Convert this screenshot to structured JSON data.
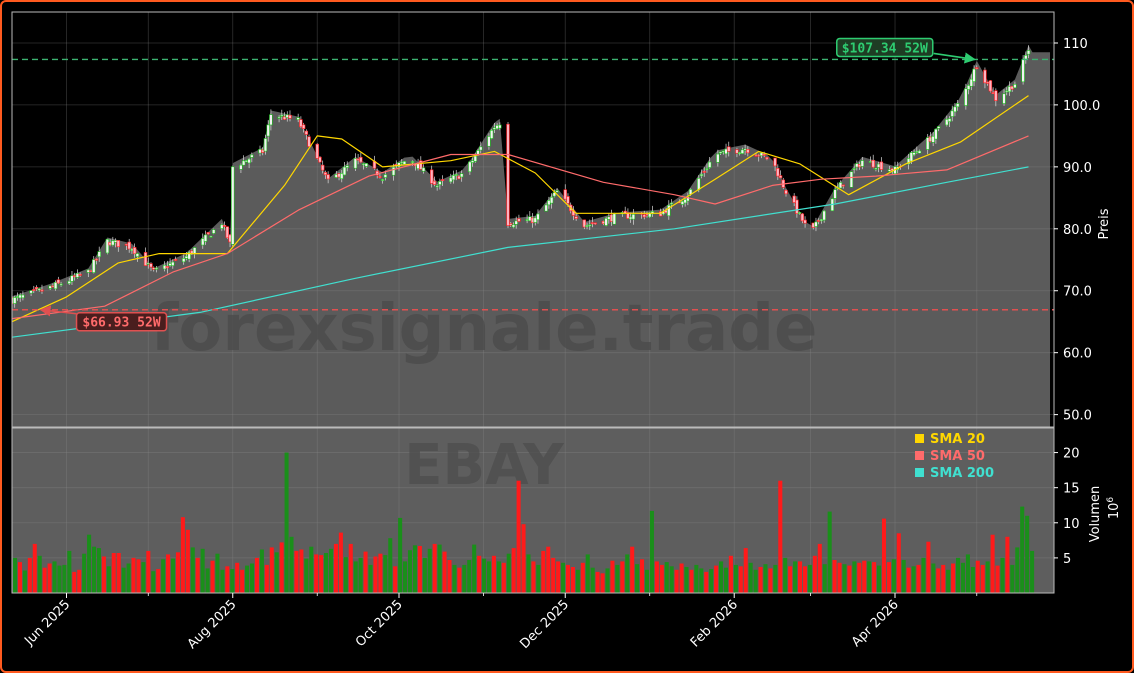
{
  "chart_data": [
    {
      "type": "candlestick",
      "ylabel": "Preis",
      "ylim": [
        48,
        115
      ],
      "yticks": [
        "50.0",
        "60.0",
        "70.0",
        "80.0",
        "90.0",
        "100.0",
        "110"
      ],
      "xticks": [
        "Jun 2025",
        "Aug 2025",
        "Oct 2025",
        "Dec 2025",
        "Feb 2026",
        "Apr 2026"
      ],
      "x_dates": [
        "2025-05-12",
        "2026-05-22"
      ],
      "watermark": "forexsignale.trade",
      "grid": true,
      "colors": {
        "up": "#19c219",
        "down": "#ff1a1a",
        "sma20": "#ffd700",
        "sma50": "#ff6b6b",
        "sma200": "#40e0d0",
        "high_line": "#3cb371",
        "low_line": "#e05050"
      },
      "high_52w": {
        "label": "$107.34 52W",
        "value": 107.34,
        "date": "2026-05-01"
      },
      "low_52w": {
        "label": "$66.93 52W",
        "value": 66.93,
        "date": "2025-05-21"
      },
      "price_path": [
        {
          "date": "2025-05-12",
          "close": 68.5
        },
        {
          "date": "2025-05-26",
          "close": 70.5
        },
        {
          "date": "2025-06-09",
          "close": 73.0
        },
        {
          "date": "2025-06-16",
          "close": 78.0
        },
        {
          "date": "2025-06-25",
          "close": 77.0
        },
        {
          "date": "2025-07-03",
          "close": 73.0
        },
        {
          "date": "2025-07-15",
          "close": 75.5
        },
        {
          "date": "2025-07-28",
          "close": 81.0
        },
        {
          "date": "2025-07-31",
          "close": 77.5
        },
        {
          "date": "2025-08-01",
          "close": 90.0
        },
        {
          "date": "2025-08-12",
          "close": 92.5
        },
        {
          "date": "2025-08-15",
          "close": 98.5
        },
        {
          "date": "2025-08-25",
          "close": 97.5
        },
        {
          "date": "2025-09-05",
          "close": 87.5
        },
        {
          "date": "2025-09-15",
          "close": 91.0
        },
        {
          "date": "2025-09-25",
          "close": 88.5
        },
        {
          "date": "2025-10-05",
          "close": 91.5
        },
        {
          "date": "2025-10-15",
          "close": 87.0
        },
        {
          "date": "2025-10-25",
          "close": 89.0
        },
        {
          "date": "2025-11-05",
          "close": 96.5
        },
        {
          "date": "2025-11-08",
          "close": 97.5
        },
        {
          "date": "2025-11-10",
          "close": 81.0
        },
        {
          "date": "2025-11-20",
          "close": 81.5
        },
        {
          "date": "2025-11-28",
          "close": 86.0
        },
        {
          "date": "2025-12-08",
          "close": 80.5
        },
        {
          "date": "2025-12-20",
          "close": 82.0
        },
        {
          "date": "2026-01-05",
          "close": 82.5
        },
        {
          "date": "2026-01-15",
          "close": 85.5
        },
        {
          "date": "2026-01-25",
          "close": 92.0
        },
        {
          "date": "2026-02-05",
          "close": 93.0
        },
        {
          "date": "2026-02-15",
          "close": 91.0
        },
        {
          "date": "2026-02-20",
          "close": 86.0
        },
        {
          "date": "2026-03-01",
          "close": 79.0
        },
        {
          "date": "2026-03-10",
          "close": 86.0
        },
        {
          "date": "2026-03-20",
          "close": 91.0
        },
        {
          "date": "2026-04-01",
          "close": 89.5
        },
        {
          "date": "2026-04-15",
          "close": 95.0
        },
        {
          "date": "2026-04-25",
          "close": 100.5
        },
        {
          "date": "2026-05-01",
          "close": 106.5
        },
        {
          "date": "2026-05-08",
          "close": 101.0
        },
        {
          "date": "2026-05-15",
          "close": 103.5
        },
        {
          "date": "2026-05-20",
          "close": 109.0
        }
      ],
      "series": [
        {
          "name": "SMA 20",
          "points": [
            {
              "date": "2025-05-12",
              "value": 65.0
            },
            {
              "date": "2025-06-01",
              "value": 69.0
            },
            {
              "date": "2025-06-20",
              "value": 74.5
            },
            {
              "date": "2025-07-05",
              "value": 76.0
            },
            {
              "date": "2025-07-30",
              "value": 76.0
            },
            {
              "date": "2025-08-20",
              "value": 87.0
            },
            {
              "date": "2025-09-01",
              "value": 95.0
            },
            {
              "date": "2025-09-10",
              "value": 94.5
            },
            {
              "date": "2025-09-25",
              "value": 90.0
            },
            {
              "date": "2025-10-20",
              "value": 91.0
            },
            {
              "date": "2025-11-05",
              "value": 92.5
            },
            {
              "date": "2025-11-20",
              "value": 89.0
            },
            {
              "date": "2025-12-05",
              "value": 82.5
            },
            {
              "date": "2026-01-05",
              "value": 82.5
            },
            {
              "date": "2026-01-25",
              "value": 88.0
            },
            {
              "date": "2026-02-10",
              "value": 92.5
            },
            {
              "date": "2026-02-25",
              "value": 90.5
            },
            {
              "date": "2026-03-15",
              "value": 85.5
            },
            {
              "date": "2026-04-05",
              "value": 90.5
            },
            {
              "date": "2026-04-25",
              "value": 94.0
            },
            {
              "date": "2026-05-20",
              "value": 101.5
            }
          ]
        },
        {
          "name": "SMA 50",
          "points": [
            {
              "date": "2025-05-12",
              "value": 65.5
            },
            {
              "date": "2025-06-15",
              "value": 67.5
            },
            {
              "date": "2025-07-10",
              "value": 73.0
            },
            {
              "date": "2025-07-30",
              "value": 76.0
            },
            {
              "date": "2025-08-25",
              "value": 83.0
            },
            {
              "date": "2025-09-20",
              "value": 88.5
            },
            {
              "date": "2025-10-20",
              "value": 92.0
            },
            {
              "date": "2025-11-10",
              "value": 92.0
            },
            {
              "date": "2025-12-15",
              "value": 87.5
            },
            {
              "date": "2026-01-10",
              "value": 85.5
            },
            {
              "date": "2026-01-25",
              "value": 84.0
            },
            {
              "date": "2026-02-15",
              "value": 87.0
            },
            {
              "date": "2026-03-05",
              "value": 88.0
            },
            {
              "date": "2026-03-25",
              "value": 88.5
            },
            {
              "date": "2026-04-20",
              "value": 89.5
            },
            {
              "date": "2026-05-20",
              "value": 95.0
            }
          ]
        },
        {
          "name": "SMA 200",
          "points": [
            {
              "date": "2025-05-12",
              "value": 62.5
            },
            {
              "date": "2025-07-20",
              "value": 66.5
            },
            {
              "date": "2025-09-15",
              "value": 72.0
            },
            {
              "date": "2025-11-10",
              "value": 77.0
            },
            {
              "date": "2026-01-10",
              "value": 80.0
            },
            {
              "date": "2026-03-10",
              "value": 84.0
            },
            {
              "date": "2026-04-20",
              "value": 87.5
            },
            {
              "date": "2026-05-20",
              "value": 90.0
            }
          ]
        }
      ]
    },
    {
      "type": "bar",
      "ylabel": "Volumen",
      "ylabel_unit": "10",
      "ylabel_unit_exp": "6",
      "ylim": [
        0,
        23.5
      ],
      "yticks": [
        "5",
        "10",
        "15",
        "20"
      ],
      "watermark": "EBAY",
      "legend": {
        "position": "upper-right",
        "entries": [
          "SMA 20",
          "SMA 50",
          "SMA 200"
        ]
      },
      "volumes_millions": [
        5.0,
        4.4,
        3.2,
        5.0,
        7.0,
        5.3,
        3.6,
        4.2,
        4.5,
        3.9,
        4.0,
        6.0,
        3.0,
        3.3,
        5.6,
        8.3,
        6.6,
        6.4,
        5.2,
        3.8,
        5.7,
        5.7,
        3.6,
        4.2,
        5.0,
        4.8,
        4.4,
        6.0,
        3.1,
        3.4,
        4.8,
        5.5,
        4.9,
        5.8,
        10.8,
        9.0,
        6.5,
        5.0,
        6.3,
        3.5,
        4.6,
        5.6,
        3.3,
        3.8,
        3.4,
        4.3,
        3.3,
        3.9,
        4.2,
        5.0,
        6.2,
        4.0,
        6.5,
        5.8,
        7.2,
        20.0,
        8.0,
        6.0,
        6.2,
        4.9,
        6.6,
        5.5,
        5.4,
        5.7,
        6.3,
        7.0,
        8.6,
        5.1,
        7.0,
        4.5,
        5.0,
        5.9,
        4.0,
        5.2,
        5.6,
        5.4,
        7.8,
        3.8,
        10.7,
        4.5,
        6.1,
        6.8,
        6.7,
        5.0,
        6.3,
        7.0,
        6.9,
        5.9,
        4.7,
        4.0,
        3.6,
        4.0,
        4.7,
        6.9,
        5.3,
        4.9,
        4.5,
        5.3,
        4.5,
        4.3,
        5.6,
        6.4,
        16.0,
        9.8,
        5.5,
        4.5,
        4.0,
        6.0,
        6.6,
        5.0,
        4.5,
        4.3,
        4.0,
        3.7,
        3.3,
        4.3,
        5.5,
        3.6,
        3.0,
        2.8,
        3.5,
        4.6,
        4.0,
        4.5,
        5.5,
        6.6,
        4.1,
        4.8,
        3.3,
        11.7,
        4.5,
        4.0,
        4.4,
        3.8,
        3.3,
        4.2,
        3.7,
        3.3,
        4.0,
        3.5,
        3.0,
        3.4,
        3.9,
        4.5,
        3.6,
        5.3,
        4.0,
        3.8,
        6.4,
        4.3,
        3.3,
        3.7,
        4.1,
        3.5,
        4.0,
        16.0,
        5.0,
        3.8,
        4.5,
        4.5,
        3.8,
        4.0,
        5.3,
        7.0,
        4.1,
        11.6,
        4.7,
        4.3,
        4.1,
        3.9,
        4.5,
        4.3,
        4.6,
        4.5,
        4.4,
        3.9,
        10.6,
        4.4,
        4.8,
        8.5,
        4.7,
        3.6,
        3.8,
        4.0,
        5.0,
        7.3,
        4.2,
        3.5,
        4.0,
        3.3,
        4.2,
        5.0,
        4.3,
        5.5,
        3.7,
        4.6,
        4.0,
        4.5,
        8.3,
        3.9,
        5.0,
        8.0,
        4.0,
        6.5,
        12.3,
        11.0,
        6.0
      ],
      "up_flags": [
        1,
        0,
        1,
        0,
        0,
        1,
        0,
        0,
        1,
        1,
        1,
        1,
        0,
        0,
        1,
        1,
        1,
        1,
        0,
        1,
        0,
        0,
        1,
        1,
        0,
        0,
        1,
        0,
        1,
        0,
        1,
        0,
        1,
        0,
        0,
        0,
        1,
        0,
        1,
        1,
        0,
        1,
        1,
        0,
        1,
        0,
        0,
        1,
        1,
        0,
        1,
        0,
        0,
        1,
        0,
        1,
        1,
        0,
        0,
        1,
        1,
        0,
        0,
        1,
        1,
        0,
        0,
        1,
        0,
        1,
        1,
        0,
        1,
        0,
        0,
        1,
        1,
        0,
        1,
        1,
        1,
        1,
        0,
        1,
        1,
        0,
        1,
        0,
        0,
        1,
        0,
        1,
        1,
        1,
        0,
        1,
        1,
        0,
        1,
        0,
        1,
        0,
        0,
        0,
        1,
        0,
        1,
        0,
        0,
        0,
        0,
        1,
        0,
        0,
        1,
        0,
        1,
        1,
        0,
        0,
        1,
        0,
        1,
        0,
        1,
        0,
        1,
        0,
        1,
        1,
        0,
        0,
        1,
        1,
        0,
        0,
        1,
        0,
        1,
        1,
        0,
        1,
        0,
        1,
        1,
        0,
        1,
        0,
        0,
        1,
        1,
        0,
        1,
        0,
        1,
        0,
        1,
        0,
        1,
        0,
        0,
        1,
        0,
        0,
        1,
        1,
        0,
        0,
        1,
        0,
        1,
        0,
        0,
        1,
        0,
        1,
        0,
        0,
        1,
        0,
        1,
        0,
        1,
        0,
        1,
        0,
        1,
        0,
        0,
        1,
        0,
        1,
        1,
        1,
        1,
        0,
        0,
        1,
        0,
        0,
        1,
        0,
        1,
        1,
        1,
        1,
        1
      ]
    }
  ]
}
